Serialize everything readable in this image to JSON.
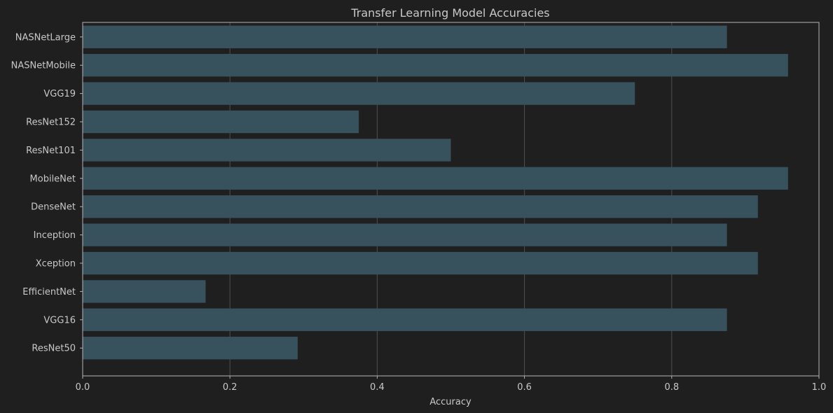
{
  "chart_data": {
    "type": "bar",
    "orientation": "horizontal",
    "title": "Transfer Learning Model Accuracies",
    "xlabel": "Accuracy",
    "ylabel": "",
    "xlim": [
      0.0,
      1.0
    ],
    "x_ticks": [
      "0.0",
      "0.2",
      "0.4",
      "0.6",
      "0.8",
      "1.0"
    ],
    "grid": "vertical",
    "categories": [
      "ResNet50",
      "VGG16",
      "EfficientNet",
      "Xception",
      "Inception",
      "DenseNet",
      "MobileNet",
      "ResNet101",
      "ResNet152",
      "VGG19",
      "NASNetMobile",
      "NASNetLarge"
    ],
    "values": [
      0.292,
      0.875,
      0.167,
      0.917,
      0.875,
      0.917,
      0.958,
      0.5,
      0.375,
      0.75,
      0.958,
      0.875
    ]
  },
  "colors": {
    "background": "#1f1f1f",
    "bar": "#37525d",
    "grid": "#4f4f4f",
    "frame": "#b4b4b4",
    "text": "#c8c8c8"
  }
}
